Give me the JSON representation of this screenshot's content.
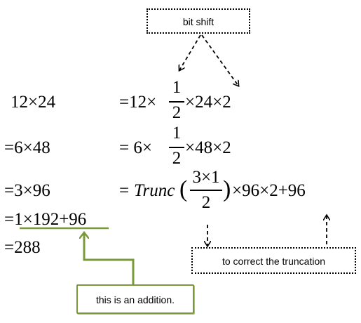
{
  "colors": {
    "background": "#ffffff",
    "text": "#000000",
    "green_accent": "#7a9a3a"
  },
  "left_column": {
    "row1": "12×24",
    "row2": "=6×48",
    "row3": "=3×96",
    "row4": "=1×192+96",
    "row5": "=288"
  },
  "right_column": {
    "row1": {
      "before": "=12×",
      "frac_num": "1",
      "frac_den": "2",
      "after": "×24×2"
    },
    "row2": {
      "before": "= 6×",
      "frac_num": "1",
      "frac_den": "2",
      "after": "×48×2"
    },
    "row3": {
      "eq": "=",
      "func": "Trunc",
      "open_paren": "(",
      "frac_num": "3×1",
      "frac_den": "2",
      "close_paren": ")",
      "after": "×96×2+96"
    }
  },
  "annotations": {
    "bit_shift": "bit shift",
    "correct_truncation": "to correct the truncation",
    "addition_note": "this is an addition."
  }
}
